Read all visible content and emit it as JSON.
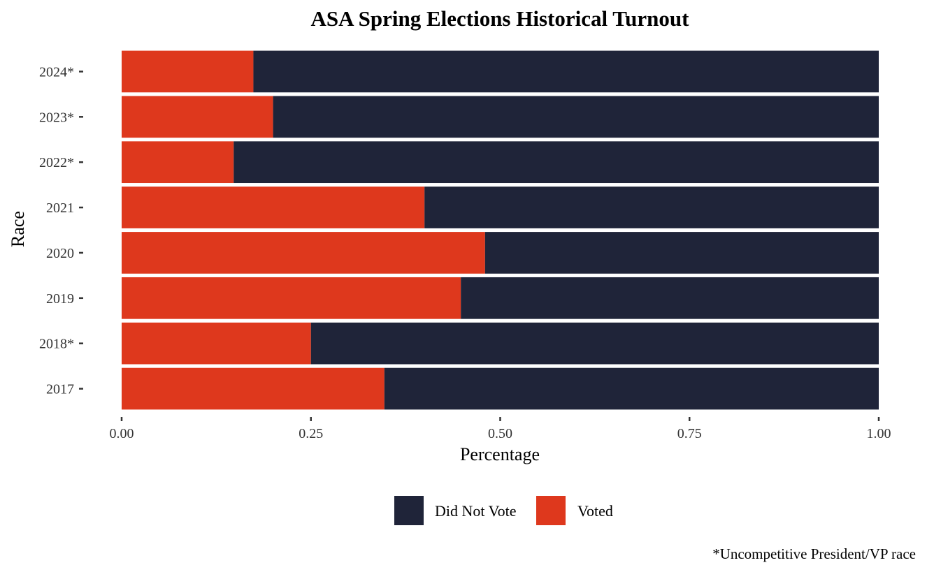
{
  "chart_data": {
    "type": "bar",
    "orientation": "horizontal",
    "stacked": true,
    "title": "ASA Spring Elections Historical Turnout",
    "xlabel": "Percentage",
    "ylabel": "Race",
    "xlim": [
      0,
      1
    ],
    "xticks": [
      "0.00",
      "0.25",
      "0.50",
      "0.75",
      "1.00"
    ],
    "xtick_values": [
      0,
      0.25,
      0.5,
      0.75,
      1
    ],
    "categories": [
      "2017",
      "2018*",
      "2019",
      "2020",
      "2021",
      "2022*",
      "2023*",
      "2024*"
    ],
    "series": [
      {
        "name": "Voted",
        "color": "#de381d",
        "values": [
          0.347,
          0.25,
          0.448,
          0.48,
          0.4,
          0.148,
          0.2,
          0.174
        ]
      },
      {
        "name": "Did Not Vote",
        "color": "#1f2439",
        "values": [
          0.653,
          0.75,
          0.552,
          0.52,
          0.6,
          0.852,
          0.8,
          0.826
        ]
      }
    ],
    "legend": {
      "position": "bottom",
      "entries": [
        {
          "label": "Did Not Vote",
          "color": "#1f2439"
        },
        {
          "label": "Voted",
          "color": "#de381d"
        }
      ]
    },
    "caption": "*Uncompetitive President/VP race",
    "grid": false
  }
}
